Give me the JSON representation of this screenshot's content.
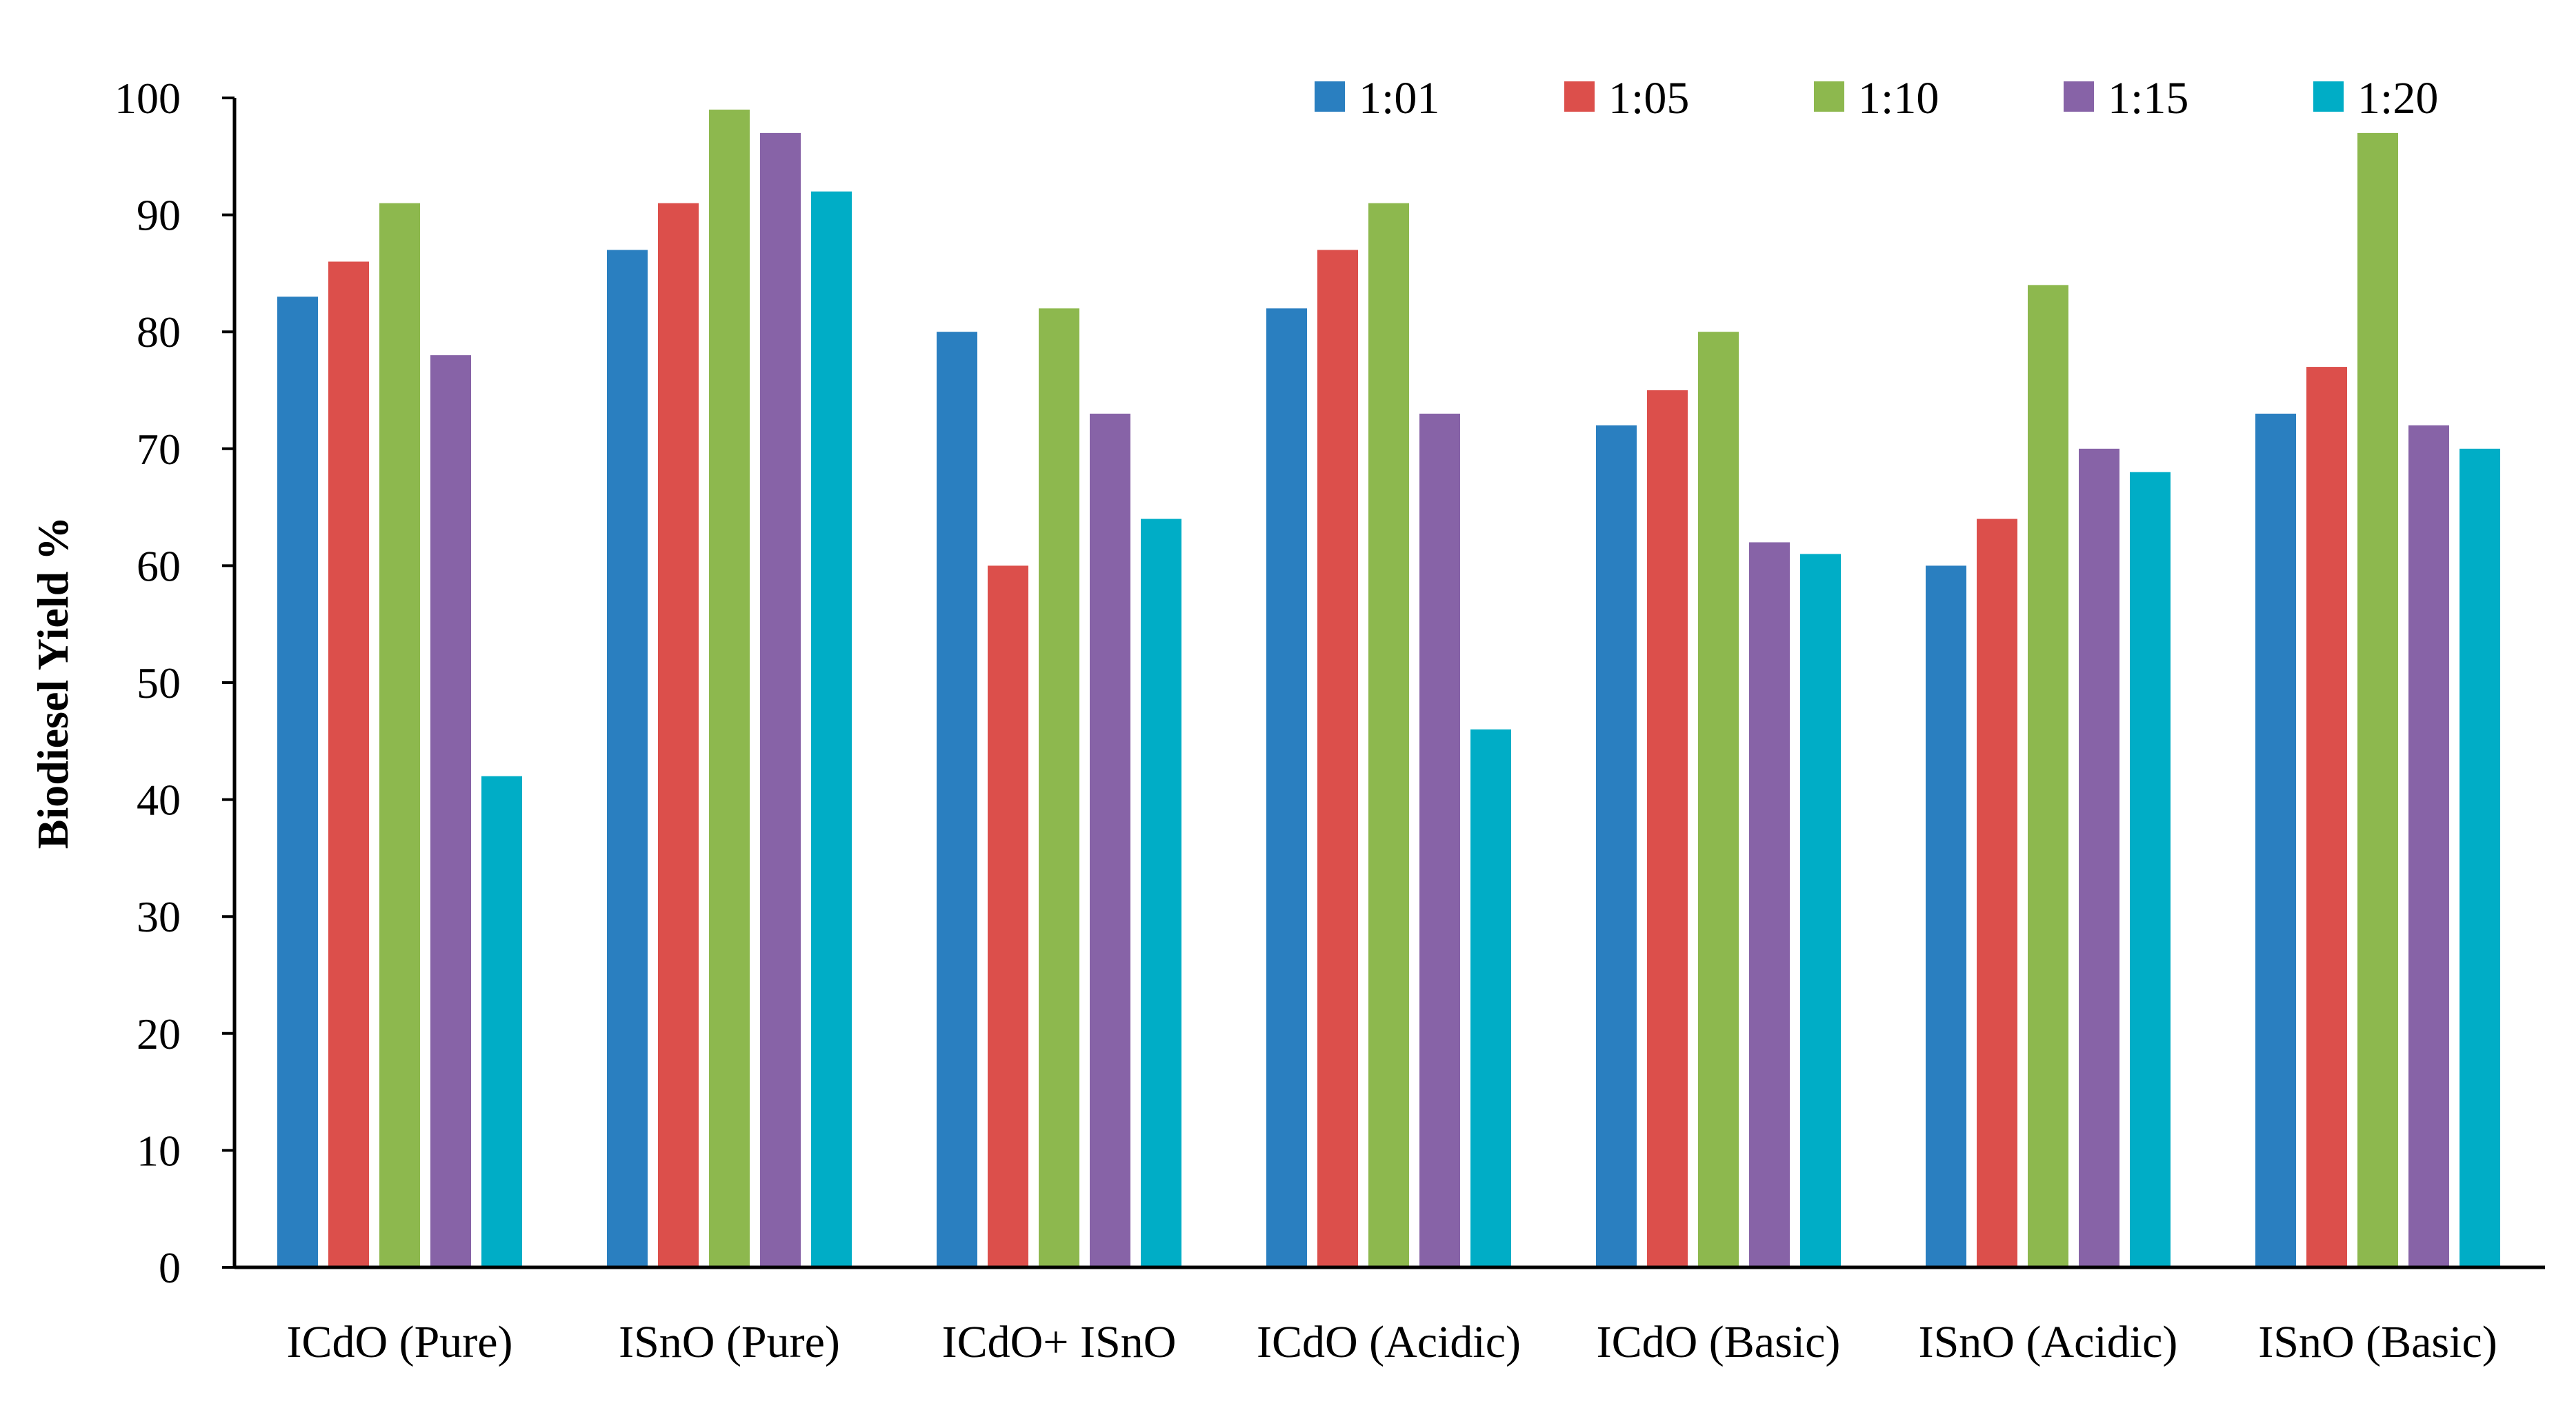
{
  "chart_data": {
    "type": "bar",
    "title": "",
    "xlabel": "",
    "ylabel": "Biodiesel Yield %",
    "ylim": [
      0,
      100
    ],
    "yticks": [
      0,
      10,
      20,
      30,
      40,
      50,
      60,
      70,
      80,
      90,
      100
    ],
    "grid": false,
    "legend_position": "top-right",
    "categories": [
      "ICdO (Pure)",
      "ISnO (Pure)",
      "ICdO+ ISnO",
      "ICdO (Acidic)",
      "ICdO (Basic)",
      "ISnO (Acidic)",
      "ISnO (Basic)"
    ],
    "series": [
      {
        "name": "1:01",
        "color": "#2a7fc0",
        "values": [
          83,
          87,
          80,
          82,
          72,
          60,
          73
        ]
      },
      {
        "name": "1:05",
        "color": "#dc4f4b",
        "values": [
          86,
          91,
          60,
          87,
          75,
          64,
          77
        ]
      },
      {
        "name": "1:10",
        "color": "#8db84e",
        "values": [
          91,
          99,
          82,
          91,
          80,
          84,
          97
        ]
      },
      {
        "name": "1:15",
        "color": "#8763a7",
        "values": [
          78,
          97,
          73,
          73,
          62,
          70,
          72
        ]
      },
      {
        "name": "1:20",
        "color": "#00adc6",
        "values": [
          42,
          92,
          64,
          46,
          61,
          68,
          70
        ]
      }
    ]
  }
}
